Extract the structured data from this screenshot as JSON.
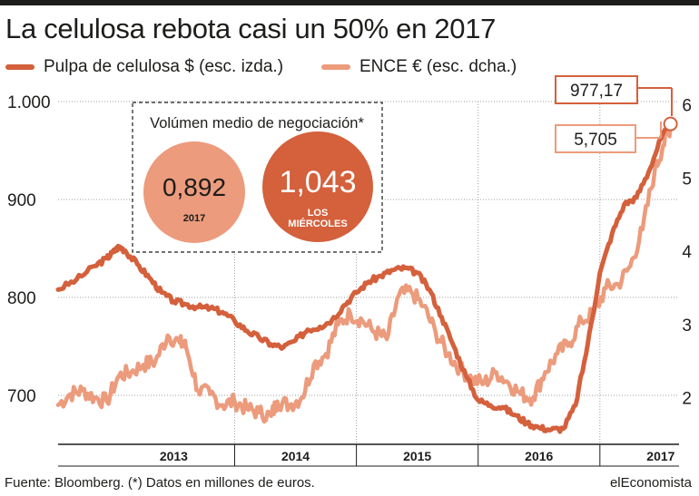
{
  "chart_data": {
    "type": "line",
    "title": "La celulosa rebota casi un 50% en 2017",
    "series": [
      {
        "name": "Pulpa de celulosa $ (esc. izda.)",
        "axis": "left",
        "color": "#d4603c",
        "points": [
          [
            2012.55,
            808
          ],
          [
            2012.7,
            818
          ],
          [
            2012.85,
            832
          ],
          [
            2012.95,
            840
          ],
          [
            2013.0,
            846
          ],
          [
            2013.05,
            852
          ],
          [
            2013.1,
            848
          ],
          [
            2013.2,
            834
          ],
          [
            2013.3,
            820
          ],
          [
            2013.4,
            805
          ],
          [
            2013.5,
            796
          ],
          [
            2013.6,
            793
          ],
          [
            2013.7,
            790
          ],
          [
            2013.8,
            789
          ],
          [
            2013.9,
            785
          ],
          [
            2014.0,
            776
          ],
          [
            2014.1,
            766
          ],
          [
            2014.2,
            759
          ],
          [
            2014.3,
            752
          ],
          [
            2014.4,
            749
          ],
          [
            2014.5,
            756
          ],
          [
            2014.6,
            767
          ],
          [
            2014.7,
            770
          ],
          [
            2014.8,
            777
          ],
          [
            2014.9,
            792
          ],
          [
            2015.0,
            805
          ],
          [
            2015.1,
            816
          ],
          [
            2015.2,
            822
          ],
          [
            2015.3,
            828
          ],
          [
            2015.4,
            830
          ],
          [
            2015.5,
            825
          ],
          [
            2015.6,
            808
          ],
          [
            2015.7,
            780
          ],
          [
            2015.8,
            750
          ],
          [
            2015.9,
            720
          ],
          [
            2016.0,
            695
          ],
          [
            2016.1,
            690
          ],
          [
            2016.2,
            688
          ],
          [
            2016.3,
            680
          ],
          [
            2016.4,
            672
          ],
          [
            2016.5,
            667
          ],
          [
            2016.6,
            665
          ],
          [
            2016.7,
            666
          ],
          [
            2016.8,
            690
          ],
          [
            2016.9,
            752
          ],
          [
            2017.0,
            825
          ],
          [
            2017.1,
            865
          ],
          [
            2017.2,
            895
          ],
          [
            2017.3,
            902
          ],
          [
            2017.4,
            928
          ],
          [
            2017.5,
            962
          ],
          [
            2017.58,
            977.17
          ]
        ]
      },
      {
        "name": "ENCE € (esc. dcha.)",
        "axis": "right",
        "color": "#ec9b7c",
        "points": [
          [
            2012.55,
            1.9
          ],
          [
            2012.65,
            2.05
          ],
          [
            2012.75,
            2.1
          ],
          [
            2012.85,
            2.0
          ],
          [
            2012.95,
            1.95
          ],
          [
            2013.05,
            2.3
          ],
          [
            2013.15,
            2.35
          ],
          [
            2013.25,
            2.45
          ],
          [
            2013.35,
            2.5
          ],
          [
            2013.45,
            2.85
          ],
          [
            2013.55,
            2.75
          ],
          [
            2013.6,
            2.7
          ],
          [
            2013.7,
            2.1
          ],
          [
            2013.8,
            2.05
          ],
          [
            2013.9,
            1.9
          ],
          [
            2014.0,
            1.95
          ],
          [
            2014.1,
            1.85
          ],
          [
            2014.2,
            1.8
          ],
          [
            2014.3,
            1.75
          ],
          [
            2014.35,
            1.95
          ],
          [
            2014.45,
            1.9
          ],
          [
            2014.55,
            2.0
          ],
          [
            2014.65,
            2.45
          ],
          [
            2014.75,
            2.6
          ],
          [
            2014.85,
            3.0
          ],
          [
            2014.95,
            3.15
          ],
          [
            2015.05,
            3.05
          ],
          [
            2015.15,
            2.9
          ],
          [
            2015.25,
            2.8
          ],
          [
            2015.35,
            3.4
          ],
          [
            2015.45,
            3.45
          ],
          [
            2015.55,
            3.25
          ],
          [
            2015.65,
            2.9
          ],
          [
            2015.75,
            2.6
          ],
          [
            2015.85,
            2.4
          ],
          [
            2015.95,
            2.25
          ],
          [
            2016.05,
            2.2
          ],
          [
            2016.15,
            2.35
          ],
          [
            2016.25,
            2.2
          ],
          [
            2016.35,
            2.05
          ],
          [
            2016.45,
            2.0
          ],
          [
            2016.55,
            2.35
          ],
          [
            2016.65,
            2.6
          ],
          [
            2016.75,
            2.75
          ],
          [
            2016.85,
            3.05
          ],
          [
            2016.95,
            3.15
          ],
          [
            2017.05,
            3.5
          ],
          [
            2017.15,
            3.55
          ],
          [
            2017.25,
            3.8
          ],
          [
            2017.35,
            4.3
          ],
          [
            2017.45,
            5.1
          ],
          [
            2017.52,
            5.45
          ],
          [
            2017.58,
            5.705
          ]
        ]
      }
    ],
    "x_range": [
      2012.55,
      2017.65
    ],
    "ylim_left": [
      650,
      1000
    ],
    "ylim_right": [
      1.364,
      6.046
    ],
    "left_ticks": [
      {
        "value": 700,
        "label": "700"
      },
      {
        "value": 800,
        "label": "800"
      },
      {
        "value": 900,
        "label": "900"
      },
      {
        "value": 1000,
        "label": "1.000"
      }
    ],
    "right_ticks": [
      {
        "value": 2,
        "label": "2"
      },
      {
        "value": 3,
        "label": "3"
      },
      {
        "value": 4,
        "label": "4"
      },
      {
        "value": 5,
        "label": "5"
      },
      {
        "value": 6,
        "label": "6"
      }
    ],
    "x_ticks": [
      {
        "value": 2013.5,
        "label": "2013"
      },
      {
        "value": 2014.5,
        "label": "2014"
      },
      {
        "value": 2015.5,
        "label": "2015"
      },
      {
        "value": 2016.5,
        "label": "2016"
      },
      {
        "value": 2017.5,
        "label": "2017"
      }
    ],
    "x_gridlines": [
      2014,
      2015,
      2016,
      2017
    ],
    "grid": true,
    "annotations": {
      "last_left": "977,17",
      "last_right": "5,705"
    },
    "inset": {
      "title": "Volúmen medio de negociación*",
      "bubbles": [
        {
          "value": "0,892",
          "label": "2017",
          "color": "#ec9b7c"
        },
        {
          "value": "1,043",
          "label": "LOS MIÉRCOLES",
          "color": "#d4603c"
        }
      ]
    }
  },
  "footer": {
    "source": "Fuente: Bloomberg. (*) Datos en millones de euros.",
    "brand": "elEconomista"
  }
}
